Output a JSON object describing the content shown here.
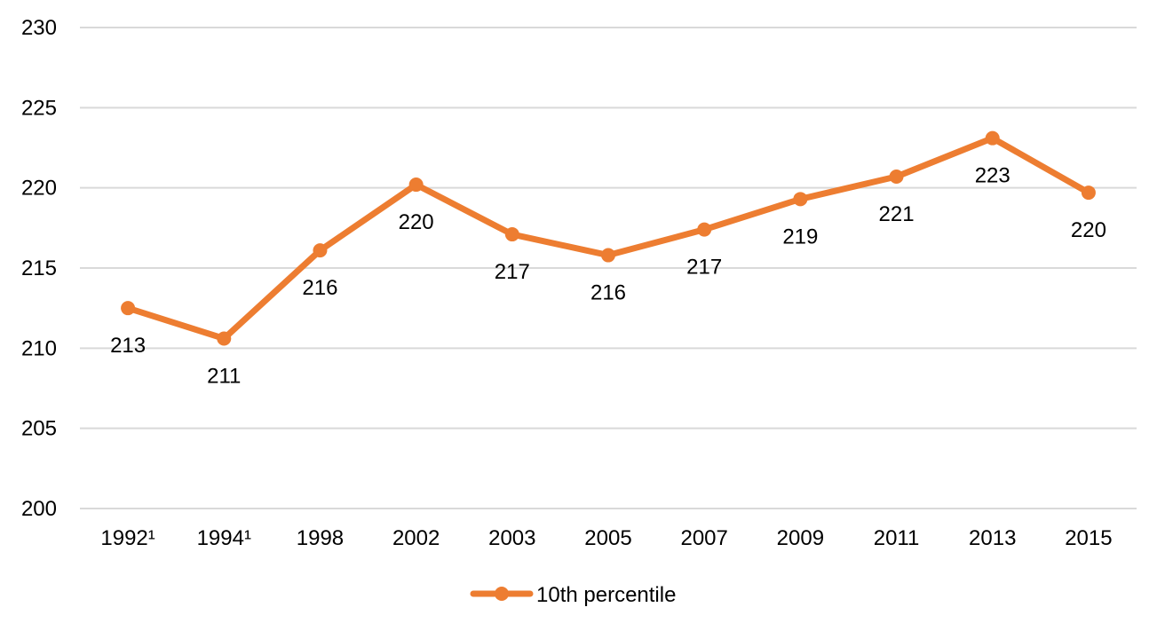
{
  "chart_data": {
    "type": "line",
    "title": "",
    "xlabel": "",
    "ylabel": "",
    "categories": [
      "1992¹",
      "1994¹",
      "1998",
      "2002",
      "2003",
      "2005",
      "2007",
      "2009",
      "2011",
      "2013",
      "2015"
    ],
    "series": [
      {
        "name": "10th percentile",
        "values": [
          212.5,
          210.6,
          216.1,
          220.2,
          217.1,
          215.8,
          217.4,
          219.3,
          220.7,
          223.1,
          219.7
        ],
        "labels": [
          "213",
          "211",
          "216",
          "220",
          "217",
          "216",
          "217",
          "219",
          "221",
          "223",
          "220"
        ],
        "color": "#ED7D31"
      }
    ],
    "ylim": [
      200,
      230
    ],
    "yticks": [
      "200",
      "205",
      "210",
      "215",
      "220",
      "225",
      "230"
    ],
    "grid": true,
    "legend_position": "bottom"
  }
}
